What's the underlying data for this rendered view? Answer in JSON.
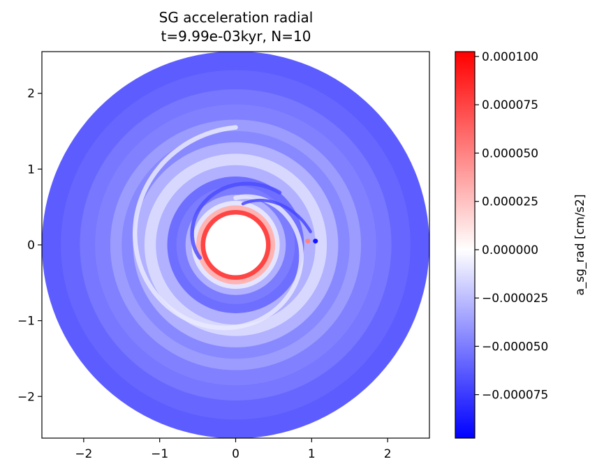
{
  "chart_data": {
    "type": "heatmap",
    "title_line1": "SG acceleration radial",
    "title_line2": "t=9.99e-03kyr, N=10",
    "xlim": [
      -2.55,
      2.55
    ],
    "ylim": [
      -2.55,
      2.55
    ],
    "x_ticks": [
      -2,
      -1,
      0,
      1,
      2
    ],
    "y_ticks": [
      -2,
      -1,
      0,
      1,
      2
    ],
    "x_tick_labels": [
      "−2",
      "−1",
      "0",
      "1",
      "2"
    ],
    "y_tick_labels": [
      "−2",
      "−1",
      "0",
      "1",
      "2"
    ],
    "disk": {
      "inner_radius": 0.4,
      "outer_radius": 2.55
    },
    "colorbar": {
      "label": "a_sg_rad [cm/s2]",
      "vmin": -9.75e-05,
      "vmax": 0.0001025,
      "ticks": [
        -7.5e-05,
        -5e-05,
        -2.5e-05,
        0.0,
        2.5e-05,
        5e-05,
        7.5e-05,
        0.0001
      ],
      "tick_labels": [
        "−0.000075",
        "−0.000050",
        "−0.000025",
        "0.000000",
        "0.000025",
        "0.000050",
        "0.000075",
        "0.000100"
      ],
      "colormap": "bwr",
      "color_min": "#0000ff",
      "color_mid": "#ffffff",
      "color_max": "#ff0000"
    },
    "rings": [
      {
        "radius": 0.4,
        "value": 0.0001
      },
      {
        "radius": 0.46,
        "value": 7.5e-05
      },
      {
        "radius": 0.52,
        "value": 3e-05
      },
      {
        "radius": 0.58,
        "value": -1e-05
      },
      {
        "radius": 0.66,
        "value": -3e-05
      },
      {
        "radius": 0.78,
        "value": -5e-05
      },
      {
        "radius": 0.9,
        "value": -5.5e-05
      },
      {
        "radius": 1.05,
        "value": -3e-05
      },
      {
        "radius": 1.2,
        "value": -1.5e-05
      },
      {
        "radius": 1.35,
        "value": -3e-05
      },
      {
        "radius": 1.5,
        "value": -4.5e-05
      },
      {
        "radius": 1.65,
        "value": -3.8e-05
      },
      {
        "radius": 1.85,
        "value": -4.8e-05
      },
      {
        "radius": 2.05,
        "value": -5.2e-05
      },
      {
        "radius": 2.3,
        "value": -5.8e-05
      },
      {
        "radius": 2.55,
        "value": -6.2e-05
      }
    ],
    "spiral_arms": [
      {
        "name": "",
        "r_start": 0.62,
        "r_end": 1.55,
        "phi_start_deg": 90,
        "turn_deg": -360,
        "value": -8e-06,
        "width": 0.06
      },
      {
        "name": "",
        "r_start": 0.5,
        "r_end": 0.9,
        "phi_start_deg": 200,
        "turn_deg": -150,
        "value": -6.8e-05,
        "width": 0.05
      },
      {
        "name": "",
        "r_start": 0.55,
        "r_end": 1.0,
        "phi_start_deg": 80,
        "turn_deg": -70,
        "value": -7e-05,
        "width": 0.04
      }
    ],
    "features": [
      {
        "x": 0.95,
        "y": 0.05,
        "value": 5e-05
      },
      {
        "x": 1.05,
        "y": 0.05,
        "value": -9e-05
      }
    ]
  }
}
